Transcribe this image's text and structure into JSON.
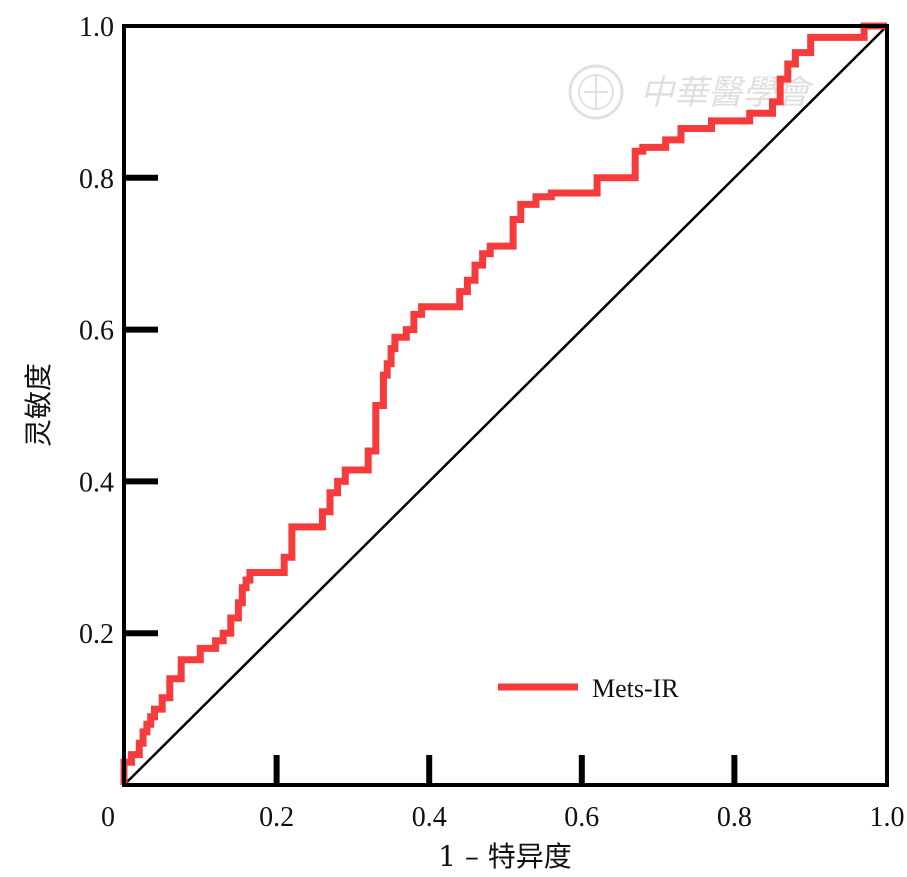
{
  "chart_data": {
    "type": "line",
    "title": "",
    "xlabel": "1 – 特异度",
    "ylabel": "灵敏度",
    "xlim": [
      0,
      1
    ],
    "ylim": [
      0,
      1
    ],
    "x_ticks": [
      0,
      0.2,
      0.4,
      0.6,
      0.8,
      1.0
    ],
    "x_tick_labels": [
      "0",
      "0.2",
      "0.4",
      "0.6",
      "0.8",
      "1.0"
    ],
    "y_ticks": [
      0.2,
      0.4,
      0.6,
      0.8,
      1.0
    ],
    "y_tick_labels": [
      "0.2",
      "0.4",
      "0.6",
      "0.8",
      "1.0"
    ],
    "grid": false,
    "legend_position": "bottom-right",
    "reference_line": {
      "x": [
        0,
        1
      ],
      "y": [
        0,
        1
      ],
      "color": "#000000"
    },
    "series": [
      {
        "name": "Mets-IR",
        "color": "#f53b3b",
        "x": [
          0,
          0,
          0.01,
          0.01,
          0.02,
          0.02,
          0.025,
          0.025,
          0.03,
          0.03,
          0.035,
          0.035,
          0.04,
          0.04,
          0.05,
          0.05,
          0.06,
          0.06,
          0.075,
          0.075,
          0.1,
          0.1,
          0.12,
          0.12,
          0.13,
          0.13,
          0.14,
          0.14,
          0.15,
          0.15,
          0.155,
          0.155,
          0.16,
          0.16,
          0.165,
          0.165,
          0.21,
          0.21,
          0.22,
          0.22,
          0.26,
          0.26,
          0.27,
          0.27,
          0.28,
          0.28,
          0.29,
          0.29,
          0.32,
          0.32,
          0.33,
          0.33,
          0.34,
          0.34,
          0.345,
          0.345,
          0.35,
          0.35,
          0.355,
          0.355,
          0.37,
          0.37,
          0.38,
          0.38,
          0.39,
          0.39,
          0.44,
          0.44,
          0.45,
          0.45,
          0.46,
          0.46,
          0.47,
          0.47,
          0.48,
          0.48,
          0.51,
          0.51,
          0.52,
          0.52,
          0.54,
          0.54,
          0.56,
          0.56,
          0.62,
          0.62,
          0.67,
          0.67,
          0.68,
          0.68,
          0.71,
          0.71,
          0.73,
          0.73,
          0.77,
          0.77,
          0.82,
          0.82,
          0.85,
          0.85,
          0.86,
          0.86,
          0.87,
          0.87,
          0.88,
          0.88,
          0.9,
          0.9,
          0.97,
          0.97,
          1.0
        ],
        "y": [
          0,
          0.03,
          0.03,
          0.04,
          0.04,
          0.055,
          0.055,
          0.07,
          0.07,
          0.08,
          0.08,
          0.09,
          0.09,
          0.1,
          0.1,
          0.115,
          0.115,
          0.14,
          0.14,
          0.165,
          0.165,
          0.18,
          0.18,
          0.19,
          0.19,
          0.2,
          0.2,
          0.22,
          0.22,
          0.24,
          0.24,
          0.26,
          0.26,
          0.27,
          0.27,
          0.28,
          0.28,
          0.3,
          0.3,
          0.34,
          0.34,
          0.36,
          0.36,
          0.385,
          0.385,
          0.4,
          0.4,
          0.415,
          0.415,
          0.44,
          0.44,
          0.5,
          0.5,
          0.54,
          0.54,
          0.555,
          0.555,
          0.575,
          0.575,
          0.59,
          0.59,
          0.6,
          0.6,
          0.62,
          0.62,
          0.63,
          0.63,
          0.65,
          0.65,
          0.665,
          0.665,
          0.685,
          0.685,
          0.7,
          0.7,
          0.71,
          0.71,
          0.745,
          0.745,
          0.765,
          0.765,
          0.775,
          0.775,
          0.78,
          0.78,
          0.8,
          0.8,
          0.835,
          0.835,
          0.84,
          0.84,
          0.85,
          0.85,
          0.865,
          0.865,
          0.875,
          0.875,
          0.885,
          0.885,
          0.9,
          0.9,
          0.93,
          0.93,
          0.95,
          0.95,
          0.965,
          0.965,
          0.985,
          0.985,
          1.0,
          1.0
        ]
      }
    ]
  },
  "watermark": {
    "text": "中華醫學會",
    "icon": "society-emblem-icon"
  }
}
